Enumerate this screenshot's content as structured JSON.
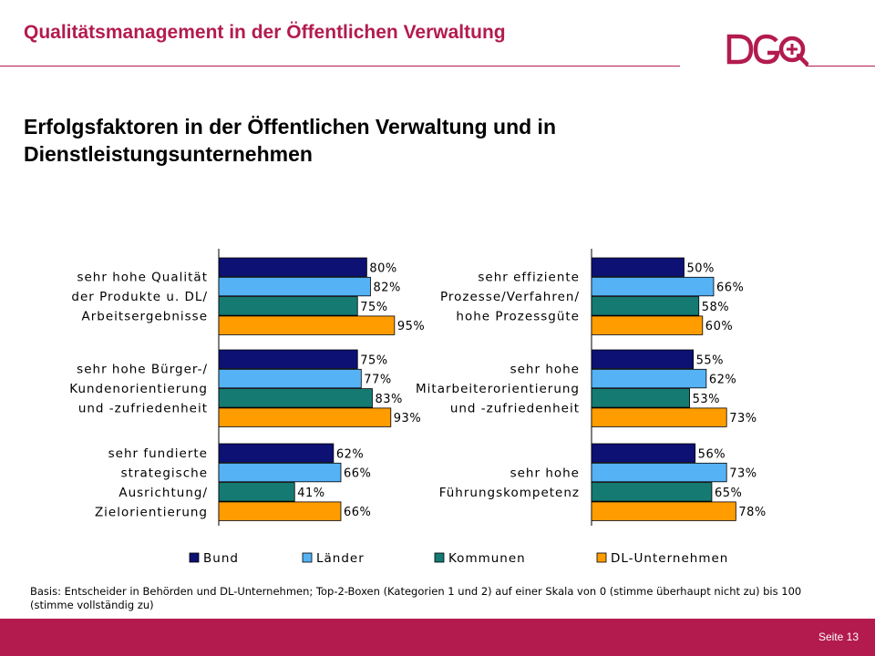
{
  "header": {
    "title": "Qualitätsmanagement in der Öffentlichen Verwaltung",
    "logo_text": "DGQ"
  },
  "slide": {
    "title": "Erfolgsfaktoren in der Öffentlichen Verwaltung und in Dienstleistungsunternehmen"
  },
  "footer": {
    "basis": "Basis: Entscheider in Behörden und DL-Unternehmen; Top-2-Boxen (Kategorien 1 und 2) auf einer Skala von 0 (stimme überhaupt nicht zu) bis 100 (stimme vollständig zu)",
    "page_label": "Seite 13"
  },
  "colors": {
    "accent": "#b31b4e",
    "Bund": "#0d1173",
    "Länder": "#55b2f4",
    "Kommunen": "#157a72",
    "DL-Unternehmen": "#ff9c00"
  },
  "chart_data": {
    "type": "bar",
    "orientation": "horizontal",
    "value_suffix": "%",
    "series_names": [
      "Bund",
      "Länder",
      "Kommunen",
      "DL-Unternehmen"
    ],
    "legend": [
      {
        "label": "Bund",
        "color": "#0d1173"
      },
      {
        "label": "Länder",
        "color": "#55b2f4"
      },
      {
        "label": "Kommunen",
        "color": "#157a72"
      },
      {
        "label": "DL-Unternehmen",
        "color": "#ff9c00"
      }
    ],
    "legend_position": "bottom",
    "panels": [
      {
        "categories": [
          {
            "lines": [
              "sehr hohe Qualität",
              "der Produkte u. DL/",
              "Arbeitsergebnisse"
            ],
            "values": [
              80,
              82,
              75,
              95
            ]
          },
          {
            "lines": [
              "sehr hohe Bürger-/",
              "Kundenorientierung",
              "und -zufriedenheit"
            ],
            "values": [
              75,
              77,
              83,
              93
            ]
          },
          {
            "lines": [
              "sehr fundierte",
              "strategische",
              "Ausrichtung/",
              "Zielorientierung"
            ],
            "values": [
              62,
              66,
              41,
              66
            ]
          }
        ]
      },
      {
        "categories": [
          {
            "lines": [
              "sehr effiziente",
              "Prozesse/Verfahren/",
              "hohe Prozessgüte"
            ],
            "values": [
              50,
              66,
              58,
              60
            ]
          },
          {
            "lines": [
              "sehr hohe",
              "Mitarbeiterorientierung",
              "und -zufriedenheit"
            ],
            "values": [
              55,
              62,
              53,
              73
            ]
          },
          {
            "lines": [
              "sehr hohe",
              "Führungskompetenz"
            ],
            "values": [
              56,
              73,
              65,
              78
            ]
          }
        ]
      }
    ]
  }
}
